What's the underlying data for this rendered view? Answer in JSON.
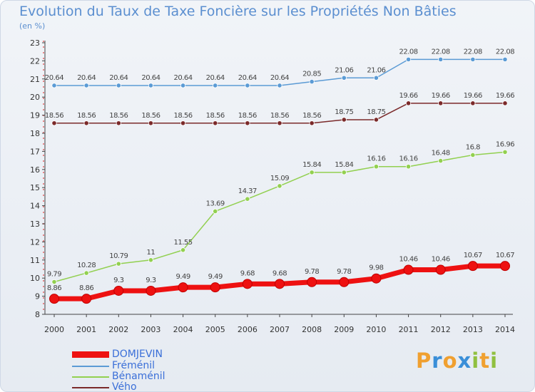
{
  "title": "Evolution du Taux de Taxe Foncière sur les Propriétés Non Bâties",
  "subtitle": "(en %)",
  "logo": {
    "letters": [
      "P",
      "r",
      "o",
      "x",
      "i",
      "t",
      "i"
    ],
    "colors": [
      "#f0a030",
      "#3a8fd8",
      "#f0a030",
      "#3a8fd8",
      "#90c040",
      "#f0a030",
      "#90c040"
    ]
  },
  "chart_data": {
    "type": "line",
    "x": [
      "2000",
      "2001",
      "2002",
      "2003",
      "2004",
      "2005",
      "2006",
      "2007",
      "2008",
      "2009",
      "2010",
      "2011",
      "2012",
      "2013",
      "2014"
    ],
    "yticks": [
      "8",
      "9",
      "10",
      "11",
      "12",
      "13",
      "14",
      "15",
      "16",
      "17",
      "18",
      "19",
      "20",
      "21",
      "22",
      "23"
    ],
    "ylim": [
      8,
      23
    ],
    "grid": false,
    "legend_position": "bottom-left",
    "series": [
      {
        "name": "DOMJEVIN",
        "color": "#ee1111",
        "values": [
          8.86,
          8.86,
          9.3,
          9.3,
          9.49,
          9.49,
          9.68,
          9.68,
          9.78,
          9.78,
          9.98,
          10.46,
          10.46,
          10.67,
          10.67
        ],
        "labels": [
          "8.86",
          "8.86",
          "9.3",
          "9.3",
          "9.49",
          "9.49",
          "9.68",
          "9.68",
          "9.78",
          "9.78",
          "9.98",
          "10.46",
          "10.46",
          "10.67",
          "10.67"
        ]
      },
      {
        "name": "Fréménil",
        "color": "#5b9bd5",
        "values": [
          20.64,
          20.64,
          20.64,
          20.64,
          20.64,
          20.64,
          20.64,
          20.64,
          20.85,
          21.06,
          21.06,
          22.08,
          22.08,
          22.08,
          22.08
        ],
        "labels": [
          "20.64",
          "20.64",
          "20.64",
          "20.64",
          "20.64",
          "20.64",
          "20.64",
          "20.64",
          "20.85",
          "21.06",
          "21.06",
          "22.08",
          "22.08",
          "22.08",
          "22.08"
        ]
      },
      {
        "name": "Bénaménil",
        "color": "#92d050",
        "values": [
          9.79,
          10.28,
          10.79,
          11,
          11.55,
          13.69,
          14.37,
          15.09,
          15.84,
          15.84,
          16.16,
          16.16,
          16.48,
          16.8,
          16.96
        ],
        "labels": [
          "9.79",
          "10.28",
          "10.79",
          "11",
          "11.55",
          "13.69",
          "14.37",
          "15.09",
          "15.84",
          "15.84",
          "16.16",
          "16.16",
          "16.48",
          "16.8",
          "16.96"
        ]
      },
      {
        "name": "Vého",
        "color": "#7b2a2a",
        "values": [
          18.56,
          18.56,
          18.56,
          18.56,
          18.56,
          18.56,
          18.56,
          18.56,
          18.56,
          18.75,
          18.75,
          19.66,
          19.66,
          19.66,
          19.66
        ],
        "labels": [
          "18.56",
          "18.56",
          "18.56",
          "18.56",
          "18.56",
          "18.56",
          "18.56",
          "18.56",
          "18.56",
          "18.75",
          "18.75",
          "19.66",
          "19.66",
          "19.66",
          "19.66"
        ]
      }
    ]
  }
}
